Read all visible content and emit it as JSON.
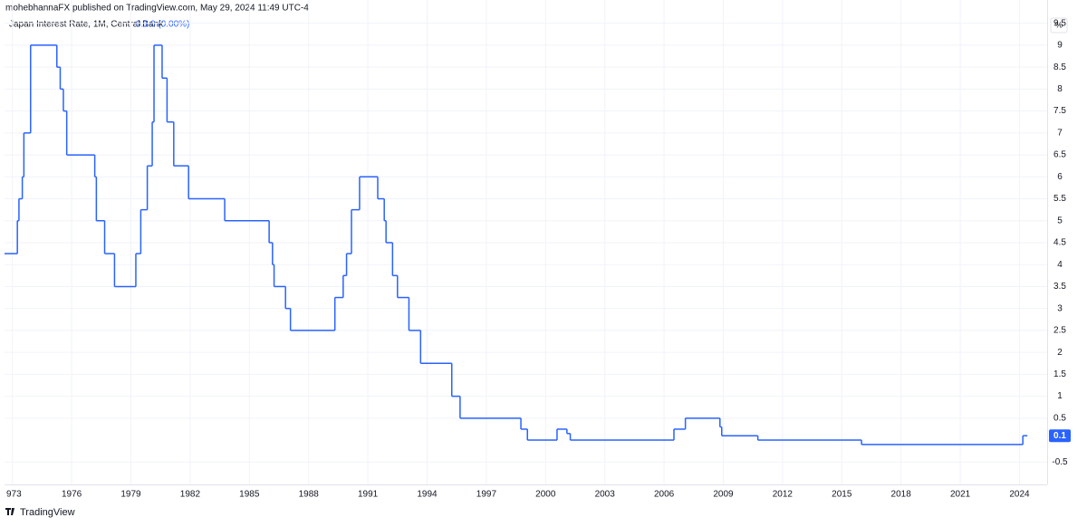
{
  "header": {
    "published": "mohebhannaFX published on TradingView.com, May 29, 2024 11:49 UTC-4"
  },
  "legend": {
    "symbol": "Japan Interest Rate, 1M, Central Bank",
    "change": "0 (0.00%)"
  },
  "footer": {
    "brand": "TradingView"
  },
  "chart_data": {
    "type": "line",
    "step": true,
    "unit": "%",
    "x": [
      1972.6,
      1973.25,
      1973.33,
      1973.5,
      1973.58,
      1973.92,
      1975.25,
      1975.42,
      1975.58,
      1975.75,
      1977.17,
      1977.25,
      1977.67,
      1978.17,
      1979.25,
      1979.5,
      1979.83,
      1980.08,
      1980.17,
      1980.58,
      1980.83,
      1981.17,
      1981.92,
      1983.75,
      1986.0,
      1986.17,
      1986.25,
      1986.83,
      1987.08,
      1989.33,
      1989.75,
      1989.92,
      1990.17,
      1990.58,
      1991.5,
      1991.83,
      1991.92,
      1992.25,
      1992.5,
      1993.08,
      1993.67,
      1995.25,
      1995.67,
      1998.75,
      1999.08,
      2000.58,
      2001.08,
      2001.25,
      2006.5,
      2007.08,
      2008.83,
      2008.92,
      2010.75,
      2016.0,
      2024.17,
      2024.4
    ],
    "series": [
      {
        "name": "Japan Interest Rate",
        "color": "#2962ff",
        "values": [
          4.25,
          5.0,
          5.5,
          6.0,
          7.0,
          9.0,
          8.5,
          8.0,
          7.5,
          6.5,
          6.0,
          5.0,
          4.25,
          3.5,
          4.25,
          5.25,
          6.25,
          7.25,
          9.0,
          8.25,
          7.25,
          6.25,
          5.5,
          5.0,
          4.5,
          4.0,
          3.5,
          3.0,
          2.5,
          3.25,
          3.75,
          4.25,
          5.25,
          6.0,
          5.5,
          5.0,
          4.5,
          3.75,
          3.25,
          2.5,
          1.75,
          1.0,
          0.5,
          0.25,
          0,
          0.25,
          0.15,
          0,
          0.25,
          0.5,
          0.3,
          0.1,
          0,
          -0.1,
          0.1,
          0.1
        ]
      }
    ],
    "xlim": [
      1972.6,
      2025.4
    ],
    "xticks": [
      {
        "value": 1973,
        "label": "973"
      },
      1976,
      1979,
      1982,
      1985,
      1988,
      1991,
      1994,
      1997,
      2000,
      2003,
      2006,
      2009,
      2012,
      2015,
      2018,
      2021,
      2024
    ],
    "ylim": [
      -1.01,
      10.03
    ],
    "yticks": [
      -0.5,
      0.5,
      1,
      1.5,
      2,
      2.5,
      3,
      3.5,
      4,
      4.5,
      5,
      5.5,
      6,
      6.5,
      7,
      7.5,
      8,
      8.5,
      9,
      9.5
    ],
    "grid": true
  }
}
